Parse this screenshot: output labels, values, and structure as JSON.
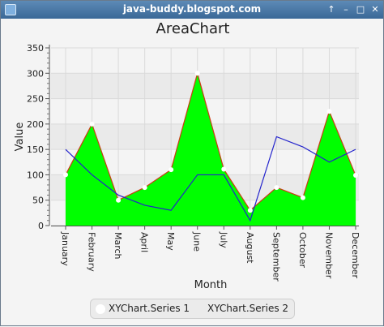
{
  "window": {
    "title": "java-buddy.blogspot.com",
    "controls": [
      {
        "name": "up-arrow-icon",
        "glyph": "↑"
      },
      {
        "name": "minimize-icon",
        "glyph": "–"
      },
      {
        "name": "maximize-icon",
        "glyph": "□"
      },
      {
        "name": "close-icon",
        "glyph": "✕"
      }
    ]
  },
  "chart_data": {
    "type": "area",
    "title": "AreaChart",
    "xlabel": "Month",
    "ylabel": "Value",
    "ylim": [
      0,
      350
    ],
    "yticks": [
      0,
      50,
      100,
      150,
      200,
      250,
      300,
      350
    ],
    "grid": true,
    "legend_position": "bottom",
    "categories": [
      "January",
      "February",
      "March",
      "April",
      "May",
      "June",
      "July",
      "August",
      "September",
      "October",
      "November",
      "December"
    ],
    "series": [
      {
        "name": "XYChart.Series 1",
        "fill": "#00ff00",
        "stroke": "#cc3b12",
        "marker": "#ffffff",
        "values": [
          100,
          200,
          50,
          75,
          110,
          300,
          111,
          30,
          75,
          55,
          225,
          99
        ]
      },
      {
        "name": "XYChart.Series 2",
        "fill": "none",
        "stroke": "#2222cc",
        "values": [
          150,
          100,
          60,
          40,
          30,
          100,
          100,
          10,
          175,
          155,
          125,
          150
        ]
      }
    ]
  }
}
